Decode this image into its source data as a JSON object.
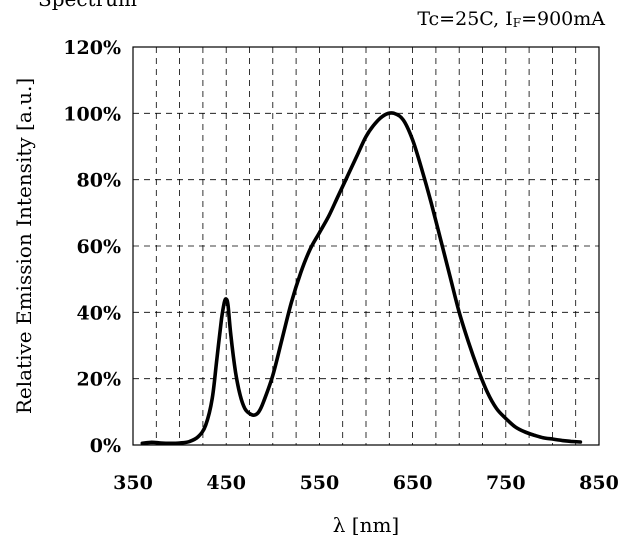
{
  "header": {
    "title_bullet": "",
    "title": "Spectrum",
    "condition_prefix": "Tc=25C, I",
    "condition_sub": "F",
    "condition_suffix": "=900mA"
  },
  "chart_data": {
    "type": "line",
    "title": "Spectrum",
    "subtitle": "Tc=25C, IF=900mA",
    "xlabel": "λ [nm]",
    "ylabel": "Relative Emission Intensity [a.u.]",
    "xlim": [
      350,
      850
    ],
    "ylim": [
      0,
      120
    ],
    "xticks": [
      350,
      450,
      550,
      650,
      750,
      850
    ],
    "yticks": [
      0,
      20,
      40,
      60,
      80,
      100,
      120
    ],
    "ytick_labels": [
      "0%",
      "20%",
      "40%",
      "60%",
      "80%",
      "100%",
      "120%"
    ],
    "grid": true,
    "grid_style": "dashed",
    "line_color": "#000000",
    "series": [
      {
        "x": [
          360,
          370,
          380,
          390,
          400,
          410,
          420,
          428,
          435,
          440,
          445,
          448,
          450,
          452,
          455,
          460,
          465,
          470,
          475,
          480,
          485,
          490,
          500,
          510,
          520,
          530,
          540,
          550,
          560,
          570,
          580,
          590,
          600,
          610,
          620,
          630,
          640,
          650,
          660,
          670,
          680,
          690,
          700,
          710,
          720,
          730,
          740,
          750,
          760,
          770,
          780,
          790,
          800,
          810,
          820,
          830
        ],
        "values": [
          0.5,
          0.8,
          0.6,
          0.5,
          0.6,
          1.0,
          2.5,
          6,
          14,
          26,
          38,
          43,
          44,
          42,
          33,
          22,
          15,
          11,
          9.5,
          9,
          10,
          13,
          21,
          32,
          43,
          52,
          59,
          64,
          69,
          75,
          81,
          87,
          93,
          97,
          99.5,
          100,
          98,
          92,
          83,
          73,
          62,
          51,
          40,
          31,
          23,
          16,
          11,
          8,
          5.5,
          4,
          3,
          2.2,
          1.8,
          1.4,
          1.1,
          0.9
        ]
      }
    ]
  }
}
